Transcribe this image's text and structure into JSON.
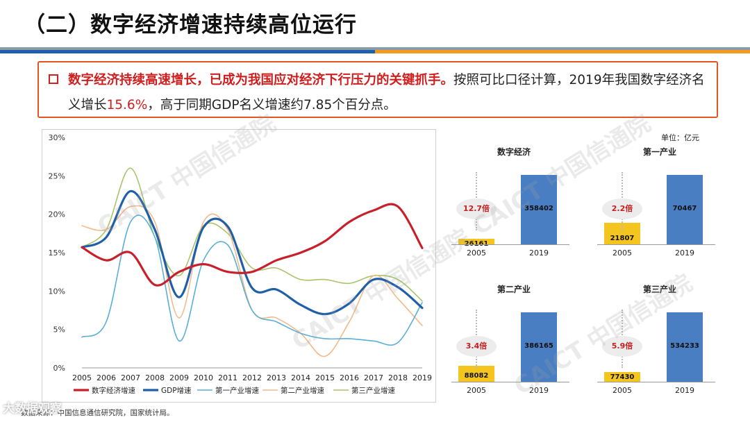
{
  "slide": {
    "title": "（二）数字经济增速持续高位运行",
    "note_bold": "数字经济持续高速增长，已成为我国应对经济下行压力的关键抓手。",
    "note_plain_1": "按照可比口径计算，2019年我国数字经济名义增长",
    "note_highlight": "15.6%",
    "note_plain_2": "，高于同期GDP名义增速约7.85个百分点。",
    "source": "数据来源：中国信息通信研究院，国家统计局。",
    "watermark": "CAICT 中国信通院",
    "logo": "大数据观察",
    "unit": "单位：亿元"
  },
  "colors": {
    "digital": "#c8202a",
    "gdp": "#1f5fa8",
    "primary": "#5aaed8",
    "secondary": "#f2b98a",
    "tertiary": "#a8c46a"
  },
  "chart_data": [
    {
      "type": "line",
      "title": "",
      "categories": [
        "2005",
        "2006",
        "2007",
        "2008",
        "2009",
        "2010",
        "2011",
        "2012",
        "2013",
        "2014",
        "2015",
        "2016",
        "2017",
        "2018",
        "2019"
      ],
      "ylim": [
        0,
        30
      ],
      "yticks": [
        "0%",
        "5%",
        "10%",
        "15%",
        "20%",
        "25%",
        "30%"
      ],
      "series": [
        {
          "name": "数字经济增速",
          "values": [
            15.7,
            14.0,
            15.0,
            10.8,
            12.5,
            13.5,
            12.5,
            12.5,
            14.0,
            15.0,
            16.5,
            19.0,
            20.5,
            21.0,
            15.6
          ]
        },
        {
          "name": "GDP增速",
          "values": [
            15.7,
            17.0,
            23.0,
            18.0,
            9.2,
            18.3,
            18.4,
            10.4,
            10.2,
            8.2,
            7.0,
            8.4,
            11.5,
            10.5,
            7.8
          ]
        },
        {
          "name": "第一产业增速",
          "values": [
            4.0,
            6.0,
            19.0,
            17.0,
            3.5,
            14.0,
            16.0,
            7.5,
            6.0,
            4.5,
            3.8,
            3.8,
            3.5,
            3.3,
            8.5
          ]
        },
        {
          "name": "第二产业增速",
          "values": [
            18.5,
            18.0,
            21.0,
            19.0,
            6.5,
            19.0,
            18.0,
            7.5,
            6.5,
            4.5,
            1.5,
            6.0,
            12.0,
            9.0,
            5.5
          ]
        },
        {
          "name": "第三产业增速",
          "values": [
            15.7,
            18.0,
            26.0,
            17.0,
            12.0,
            18.5,
            17.5,
            13.0,
            13.0,
            11.5,
            11.5,
            11.0,
            12.0,
            11.5,
            8.7
          ]
        }
      ]
    },
    {
      "type": "bar",
      "title": "数字经济",
      "categories": [
        "2005",
        "2019"
      ],
      "values": [
        26161,
        358402
      ],
      "ratio": "12.7倍"
    },
    {
      "type": "bar",
      "title": "第一产业",
      "categories": [
        "2005",
        "2019"
      ],
      "values": [
        21807,
        70467
      ],
      "ratio": "2.2倍"
    },
    {
      "type": "bar",
      "title": "第二产业",
      "categories": [
        "2005",
        "2019"
      ],
      "values": [
        88082,
        386165
      ],
      "ratio": "3.4倍"
    },
    {
      "type": "bar",
      "title": "第三产业",
      "categories": [
        "2005",
        "2019"
      ],
      "values": [
        77430,
        534233
      ],
      "ratio": "5.9倍"
    }
  ]
}
